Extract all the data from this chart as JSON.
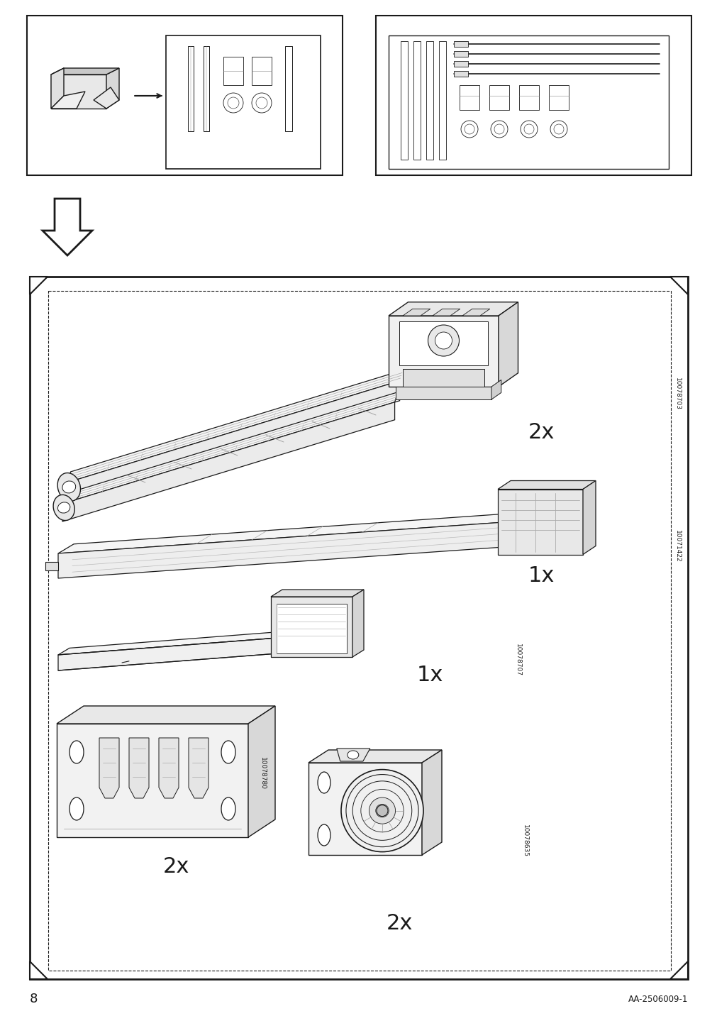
{
  "page_number": "8",
  "doc_code": "AA-2506009-1",
  "background_color": "#ffffff",
  "line_color": "#1a1a1a",
  "items": [
    {
      "label": "2x",
      "part_id": "10078703"
    },
    {
      "label": "1x",
      "part_id": "10071422"
    },
    {
      "label": "1x",
      "part_id": "10078707"
    },
    {
      "label": "2x",
      "part_id": "10078780"
    },
    {
      "label": "2x",
      "part_id": "10078635"
    }
  ]
}
